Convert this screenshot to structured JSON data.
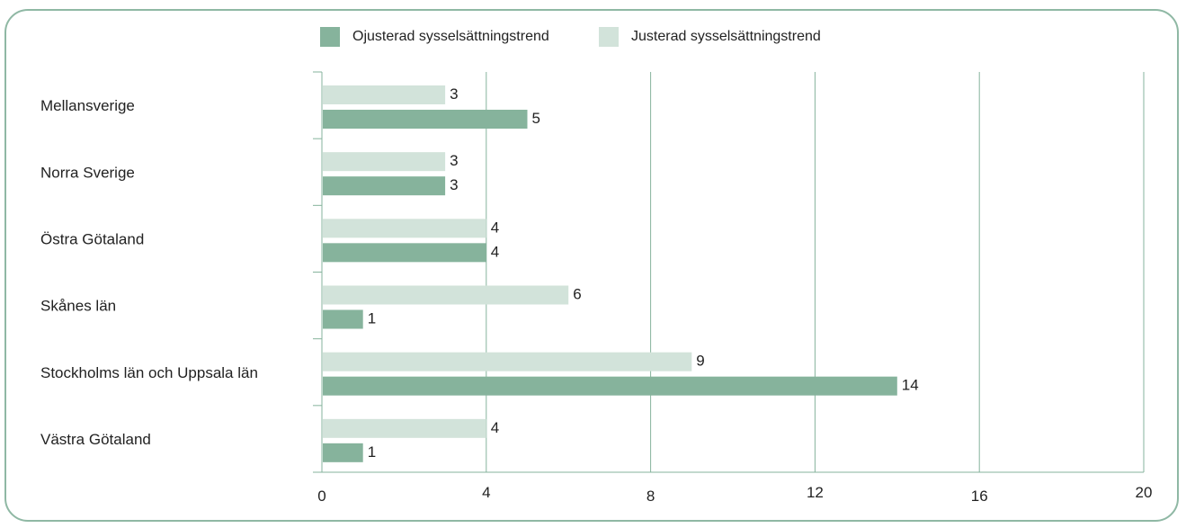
{
  "chart_data": {
    "type": "bar",
    "orientation": "horizontal",
    "categories": [
      "Mellansverige",
      "Norra Sverige",
      "Östra Götaland",
      "Skånes län",
      "Stockholms län och Uppsala län",
      "Västra Götaland"
    ],
    "series": [
      {
        "name": "Justerad sysselsättningstrend",
        "values": [
          3,
          3,
          4,
          6,
          9,
          4
        ],
        "color": "#d2e3da"
      },
      {
        "name": "Ojusterad sysselsättningstrend",
        "values": [
          5,
          3,
          4,
          1,
          14,
          1
        ],
        "color": "#86b39c"
      }
    ],
    "legend_order": [
      1,
      0
    ],
    "xlim": [
      0,
      20
    ],
    "xticks": [
      0,
      4,
      8,
      12,
      16,
      20
    ],
    "grid": "vertical",
    "legend": "top-center",
    "colors": {
      "frame": "#8fb8a4",
      "axis": "#86b39c",
      "text": "#222222"
    }
  }
}
